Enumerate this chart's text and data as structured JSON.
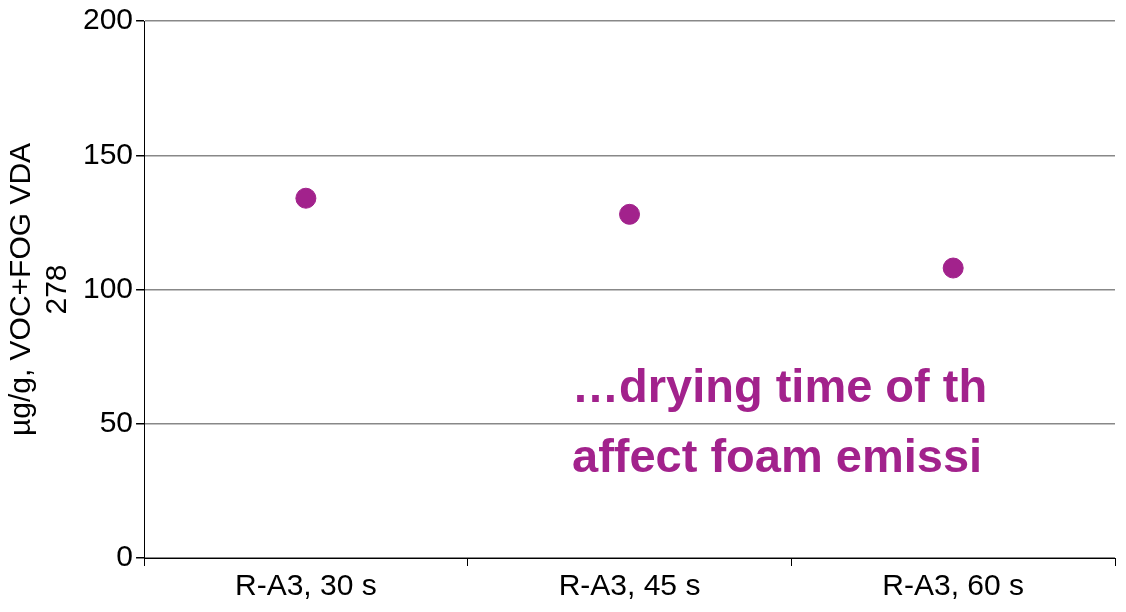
{
  "chart_data": {
    "type": "scatter",
    "ylabel": "µg/g, VOC+FOG VDA\n278",
    "categories": [
      "R-A3, 30 s",
      "R-A3, 45 s",
      "R-A3, 60 s"
    ],
    "series": [
      {
        "color": "#a2228c",
        "values": [
          134,
          128,
          108
        ]
      }
    ],
    "ylim": [
      0,
      200
    ],
    "yticks": [
      0,
      50,
      100,
      150,
      200
    ],
    "grid": "y",
    "legend": false,
    "marker": "circle",
    "annotations": [
      "…drying time of th\naffect foam emissi"
    ]
  }
}
